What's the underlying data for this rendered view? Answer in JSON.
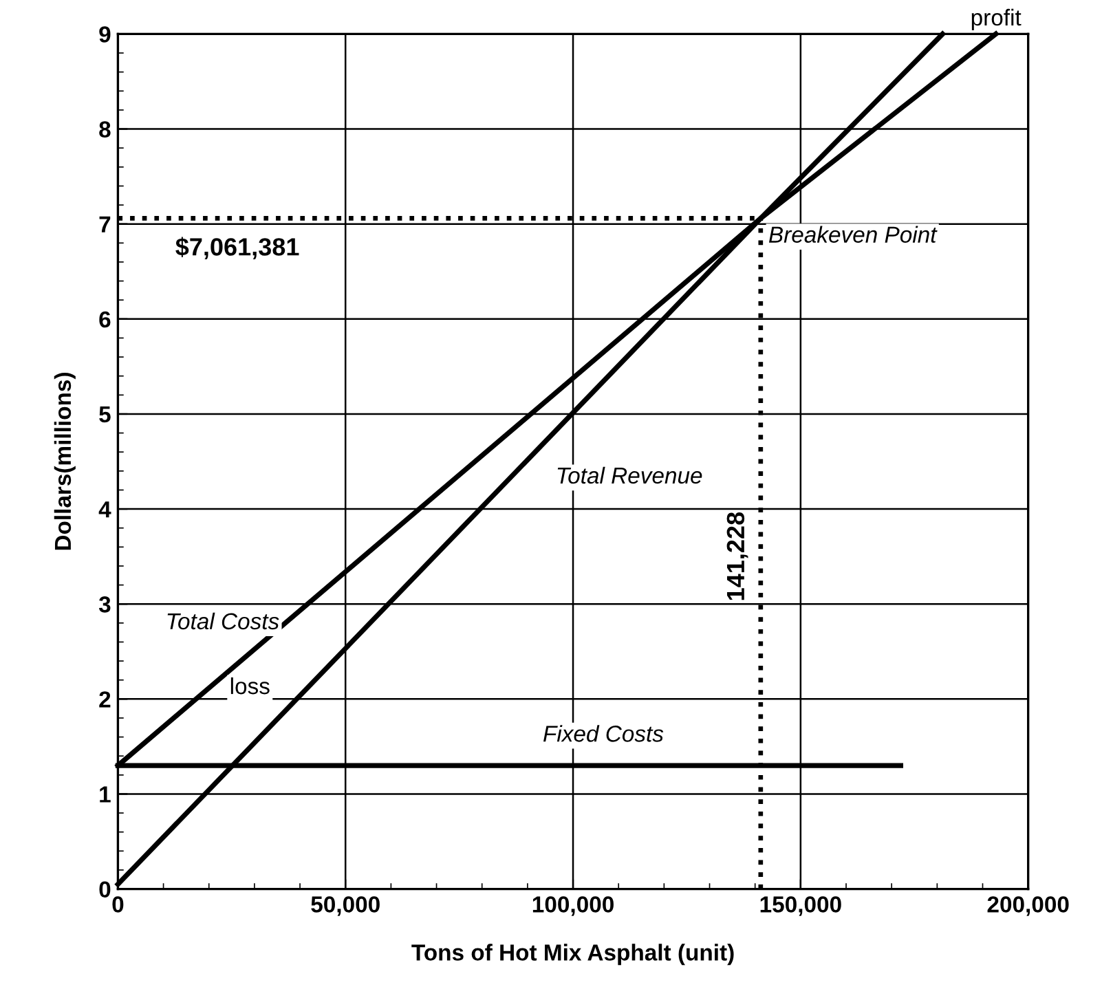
{
  "chart_data": {
    "type": "line",
    "xlabel": "Tons of Hot Mix Asphalt (unit)",
    "ylabel": "Dollars(millions)",
    "series": [
      {
        "name": "Total Revenue",
        "color": "#000000",
        "x": [
          0,
          141228,
          181200
        ],
        "values": [
          0.05,
          7.06,
          9.0
        ]
      },
      {
        "name": "Total Costs",
        "color": "#000000",
        "x": [
          0,
          141228,
          192900
        ],
        "values": [
          1.3,
          7.06,
          9.0
        ]
      },
      {
        "name": "Fixed Costs",
        "color": "#000000",
        "x": [
          0,
          172000
        ],
        "values": [
          1.3,
          1.3
        ]
      },
      {
        "color": "#000000",
        "x": [
          0,
          141228
        ],
        "values": [
          7.06,
          7.06
        ],
        "line_style": "dotted"
      },
      {
        "color": "#000000",
        "x": [
          141228,
          141228
        ],
        "values": [
          0,
          7.06
        ],
        "line_style": "dotted"
      }
    ],
    "annotations": [
      {
        "text": "$7,061,381",
        "x": 0,
        "y": 7.06
      },
      {
        "text": "141,228",
        "x": 141228,
        "y": 3.5
      },
      {
        "text": "Breakeven Point",
        "x": 141228,
        "y": 7.06
      },
      {
        "text": "profit",
        "x": 192900,
        "y": 9.0
      },
      "loss"
    ],
    "xlim": [
      0,
      200000
    ],
    "ylim": [
      0,
      9
    ],
    "xticks": [
      0,
      {
        "value": 50000,
        "label": "50,000"
      },
      {
        "value": 100000,
        "label": "100,000"
      },
      {
        "value": 150000,
        "label": "150,000"
      },
      {
        "value": 200000,
        "label": "200,000"
      }
    ],
    "yticks": [
      0,
      1,
      2,
      3,
      4,
      5,
      6,
      7,
      8,
      9
    ],
    "grid": true,
    "line_style": "solid",
    "marker": "none"
  }
}
